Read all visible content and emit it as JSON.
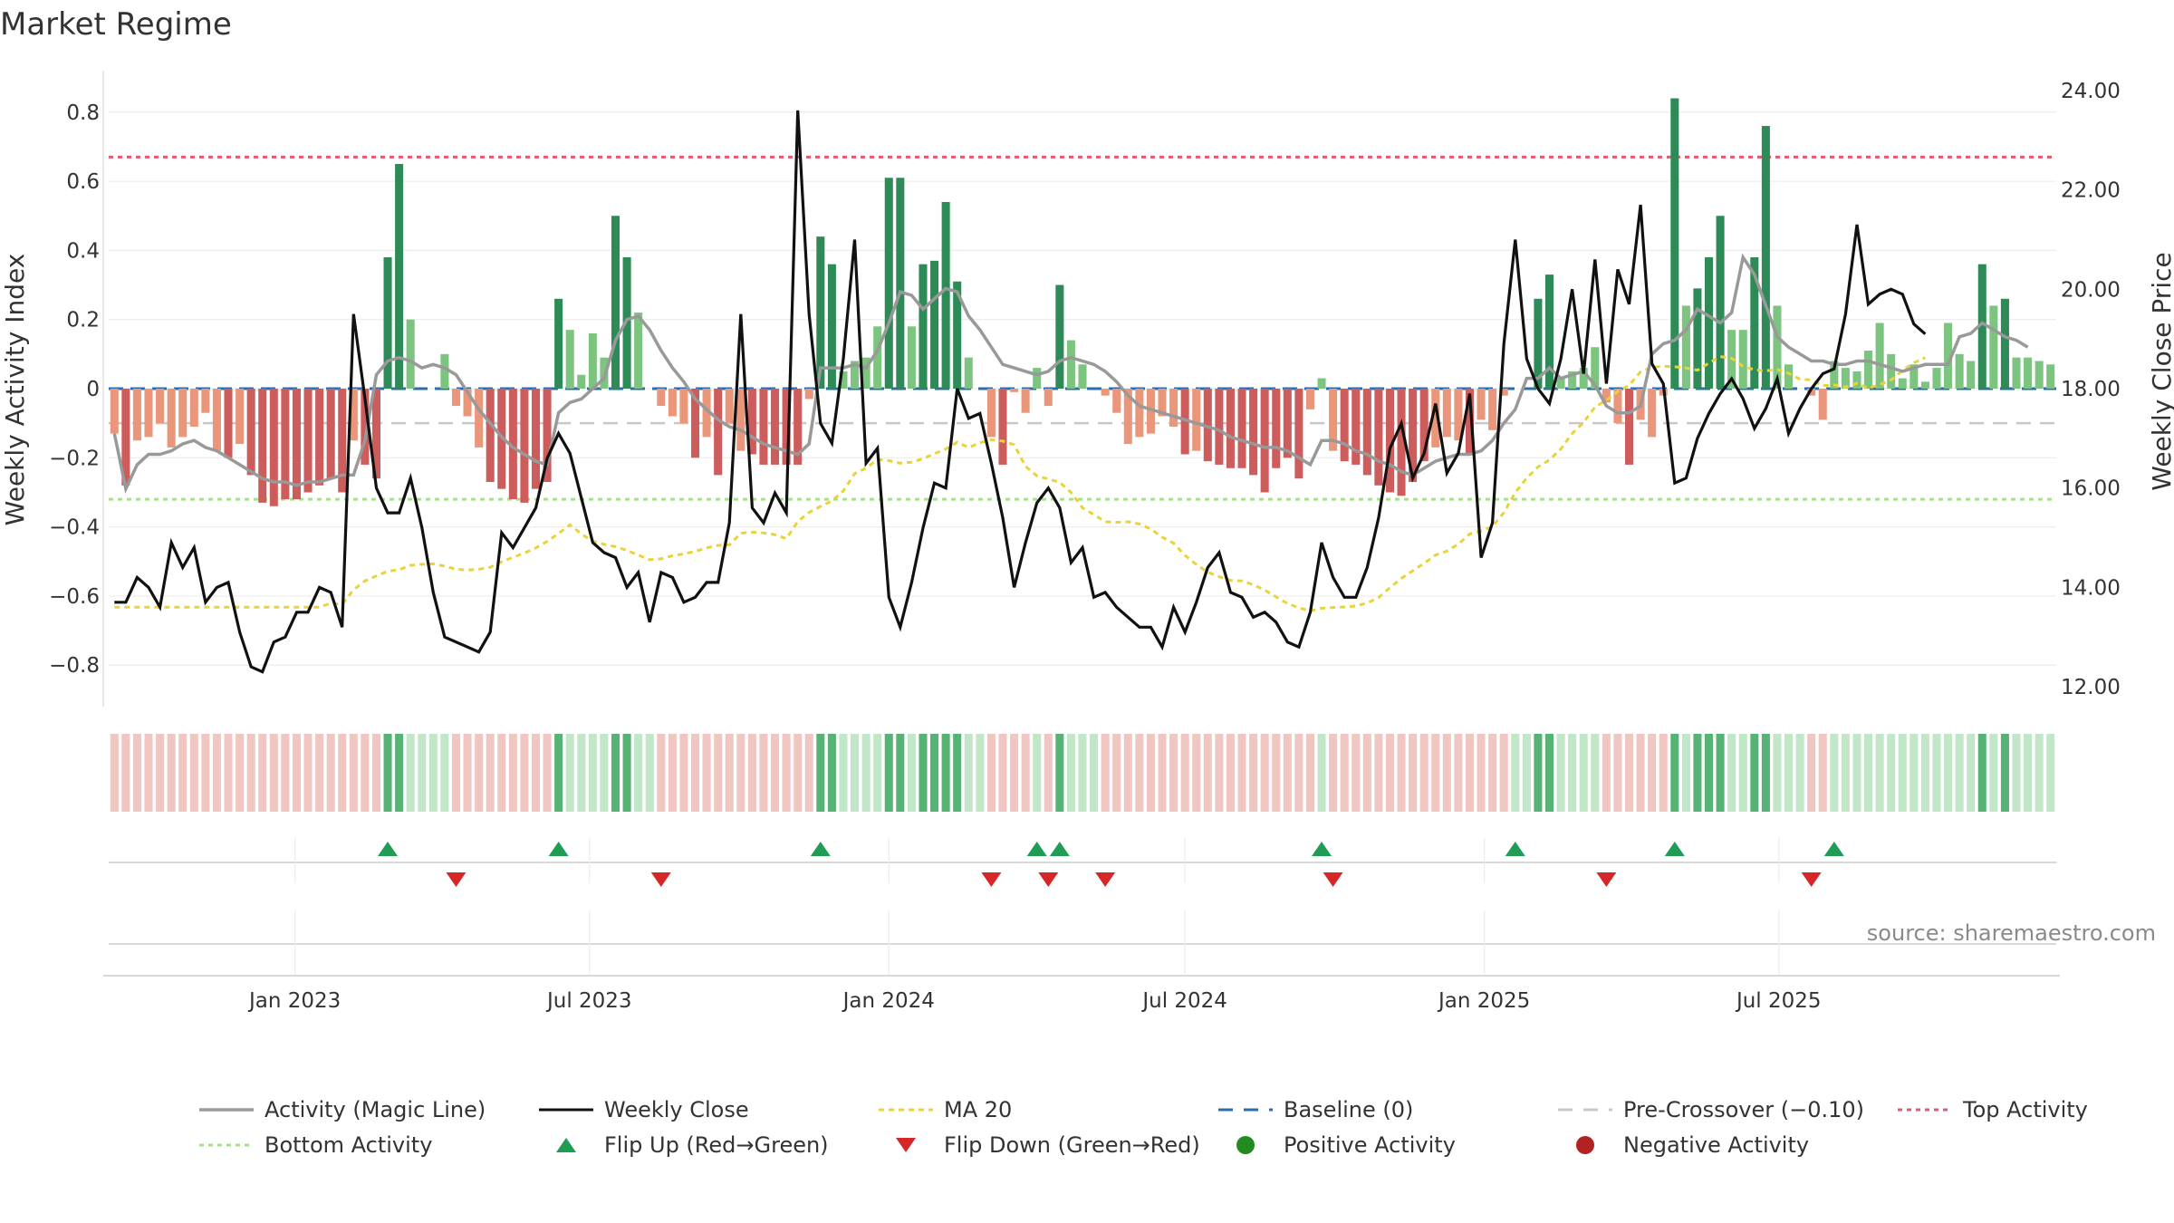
{
  "chart_data": {
    "type": "bar",
    "title": "Market Regime",
    "source": "source: sharemaestro.com",
    "start_date": "2022-09-12",
    "week_step_days": 7,
    "y_left": {
      "label": "Weekly Activity Index",
      "range": [
        -0.92,
        0.92
      ],
      "ticks": [
        -0.8,
        -0.6,
        -0.4,
        -0.2,
        0,
        0.2,
        0.4,
        0.6,
        0.8
      ],
      "tick_labels": [
        "−0.8",
        "−0.6",
        "−0.4",
        "−0.2",
        "0",
        "0.2",
        "0.4",
        "0.6",
        "0.8"
      ]
    },
    "y_right": {
      "label": "Weekly Close Price",
      "range": [
        11.6,
        24.4
      ],
      "ticks": [
        12,
        14,
        16,
        18,
        20,
        22,
        24
      ],
      "tick_labels": [
        "12.00",
        "14.00",
        "16.00",
        "18.00",
        "20.00",
        "22.00",
        "24.00"
      ]
    },
    "x_ticks": [
      {
        "date": "2023-01-01",
        "label": "Jan 2023"
      },
      {
        "date": "2023-07-01",
        "label": "Jul 2023"
      },
      {
        "date": "2024-01-01",
        "label": "Jan 2024"
      },
      {
        "date": "2024-07-01",
        "label": "Jul 2024"
      },
      {
        "date": "2025-01-01",
        "label": "Jan 2025"
      },
      {
        "date": "2025-07-01",
        "label": "Jul 2025"
      }
    ],
    "reference_lines": {
      "top_activity": 0.67,
      "bottom_activity": -0.32,
      "pre_crossover": -0.1,
      "baseline": 0
    },
    "colors": {
      "strong_pos": "#2e8b57",
      "weak_pos": "#7cc47f",
      "strong_neg": "#cd5c5c",
      "weak_neg": "#e9967a",
      "close": "#111111",
      "magic": "#999999",
      "ma": "#e8d43a",
      "baseline": "#2b6cb0",
      "pre": "#c8c8c8",
      "top": "#e05a73",
      "bottom": "#a8df90",
      "flip_up": "#1f9d55",
      "flip_down": "#d62728"
    },
    "activity": [
      -0.13,
      -0.28,
      -0.15,
      -0.14,
      -0.1,
      -0.17,
      -0.14,
      -0.11,
      -0.07,
      -0.18,
      -0.2,
      -0.16,
      -0.25,
      -0.33,
      -0.34,
      -0.32,
      -0.32,
      -0.3,
      -0.28,
      -0.26,
      -0.3,
      -0.15,
      -0.22,
      -0.26,
      0.38,
      0.65,
      0.2,
      0,
      0,
      0.1,
      -0.05,
      -0.08,
      -0.17,
      -0.27,
      -0.29,
      -0.32,
      -0.33,
      -0.29,
      -0.27,
      0.26,
      0.17,
      0.04,
      0.16,
      0.09,
      0.5,
      0.38,
      0.22,
      0,
      -0.05,
      -0.08,
      -0.1,
      -0.2,
      -0.14,
      -0.25,
      -0.1,
      -0.18,
      -0.19,
      -0.22,
      -0.22,
      -0.22,
      -0.22,
      -0.03,
      0.44,
      0.36,
      0.05,
      0.08,
      0.09,
      0.18,
      0.61,
      0.61,
      0.18,
      0.36,
      0.37,
      0.54,
      0.31,
      0.09,
      0.0,
      -0.14,
      -0.22,
      -0.01,
      -0.07,
      0.06,
      -0.05,
      0.3,
      0.14,
      0.07,
      0.0,
      -0.02,
      -0.07,
      -0.16,
      -0.14,
      -0.13,
      -0.08,
      -0.11,
      -0.19,
      -0.18,
      -0.21,
      -0.22,
      -0.23,
      -0.23,
      -0.25,
      -0.3,
      -0.23,
      -0.2,
      -0.26,
      -0.06,
      0.03,
      -0.18,
      -0.21,
      -0.22,
      -0.25,
      -0.28,
      -0.3,
      -0.31,
      -0.27,
      -0.21,
      -0.17,
      -0.14,
      -0.15,
      -0.19,
      -0.09,
      -0.12,
      -0.02,
      0.0,
      0.0,
      0.26,
      0.33,
      0.03,
      0.05,
      0.06,
      0.12,
      -0.04,
      -0.1,
      -0.22,
      -0.09,
      -0.14,
      -0.02,
      0.84,
      0.24,
      0.29,
      0.38,
      0.5,
      0.17,
      0.17,
      0.38,
      0.76,
      0.24,
      0.07,
      0.0,
      -0.02,
      -0.09,
      0.08,
      0.06,
      0.05,
      0.11,
      0.19,
      0.1,
      0.03,
      0.07,
      0.02,
      0.06,
      0.19,
      0.1,
      0.08,
      0.36,
      0.24,
      0.26,
      0.09,
      0.09,
      0.08,
      0.07
    ],
    "close": [
      13.7,
      13.7,
      14.2,
      14.0,
      13.6,
      14.9,
      14.4,
      14.8,
      13.7,
      14.0,
      14.1,
      13.1,
      12.4,
      12.3,
      12.9,
      13.0,
      13.5,
      13.5,
      14.0,
      13.9,
      13.2,
      19.5,
      17.8,
      16.0,
      15.5,
      15.5,
      16.2,
      15.2,
      13.9,
      13.0,
      12.9,
      12.8,
      12.7,
      13.1,
      15.1,
      14.8,
      15.2,
      15.6,
      16.6,
      17.1,
      16.7,
      15.8,
      14.9,
      14.7,
      14.6,
      14.0,
      14.3,
      13.3,
      14.3,
      14.2,
      13.7,
      13.8,
      14.1,
      14.1,
      15.3,
      19.5,
      15.6,
      15.3,
      15.9,
      15.5,
      23.6,
      19.5,
      17.3,
      16.9,
      18.6,
      21.0,
      16.5,
      16.8,
      13.8,
      13.2,
      14.1,
      15.2,
      16.1,
      16.0,
      18.0,
      17.4,
      17.5,
      16.5,
      15.4,
      14.0,
      14.9,
      15.7,
      16.0,
      15.6,
      14.5,
      14.8,
      13.8,
      13.9,
      13.6,
      13.4,
      13.2,
      13.2,
      12.8,
      13.6,
      13.1,
      13.7,
      14.4,
      14.7,
      13.9,
      13.8,
      13.4,
      13.5,
      13.3,
      12.9,
      12.8,
      13.5,
      14.9,
      14.2,
      13.8,
      13.8,
      14.4,
      15.4,
      16.8,
      17.3,
      16.2,
      16.7,
      17.7,
      16.3,
      16.7,
      17.9,
      14.6,
      15.3,
      18.9,
      21.0,
      18.6,
      18.0,
      17.7,
      18.6,
      20.0,
      18.3,
      20.6,
      18.1,
      20.4,
      19.7,
      21.7,
      18.5,
      18.1,
      16.1,
      16.2,
      17.0,
      17.5,
      17.9,
      18.2,
      17.8,
      17.2,
      17.6,
      18.2,
      17.1,
      17.6,
      18.0,
      18.3,
      18.4,
      19.5,
      21.3,
      19.7,
      19.9,
      20.0,
      19.9,
      19.3,
      19.1
    ],
    "magic": [
      -0.13,
      -0.29,
      -0.22,
      -0.19,
      -0.19,
      -0.18,
      -0.16,
      -0.15,
      -0.17,
      -0.18,
      -0.2,
      -0.22,
      -0.24,
      -0.26,
      -0.27,
      -0.27,
      -0.28,
      -0.27,
      -0.27,
      -0.26,
      -0.25,
      -0.25,
      -0.15,
      0.04,
      0.08,
      0.09,
      0.08,
      0.06,
      0.07,
      0.06,
      0.04,
      -0.01,
      -0.06,
      -0.1,
      -0.14,
      -0.17,
      -0.19,
      -0.21,
      -0.22,
      -0.07,
      -0.04,
      -0.03,
      0.0,
      0.03,
      0.14,
      0.2,
      0.21,
      0.17,
      0.11,
      0.06,
      0.02,
      -0.03,
      -0.06,
      -0.09,
      -0.11,
      -0.12,
      -0.14,
      -0.16,
      -0.17,
      -0.18,
      -0.19,
      -0.16,
      0.06,
      0.06,
      0.06,
      0.07,
      0.06,
      0.11,
      0.19,
      0.28,
      0.27,
      0.23,
      0.26,
      0.29,
      0.28,
      0.21,
      0.17,
      0.12,
      0.07,
      0.06,
      0.05,
      0.04,
      0.05,
      0.08,
      0.09,
      0.08,
      0.07,
      0.05,
      0.02,
      -0.02,
      -0.05,
      -0.06,
      -0.07,
      -0.08,
      -0.09,
      -0.1,
      -0.11,
      -0.12,
      -0.14,
      -0.15,
      -0.16,
      -0.17,
      -0.17,
      -0.18,
      -0.2,
      -0.22,
      -0.15,
      -0.15,
      -0.16,
      -0.18,
      -0.19,
      -0.21,
      -0.22,
      -0.24,
      -0.25,
      -0.23,
      -0.21,
      -0.2,
      -0.19,
      -0.19,
      -0.18,
      -0.15,
      -0.1,
      -0.06,
      0.03,
      0.03,
      0.06,
      0.03,
      0.04,
      0.05,
      0.01,
      -0.05,
      -0.07,
      -0.07,
      -0.05,
      0.1,
      0.13,
      0.14,
      0.17,
      0.23,
      0.21,
      0.19,
      0.22,
      0.38,
      0.33,
      0.24,
      0.15,
      0.12,
      0.1,
      0.08,
      0.08,
      0.07,
      0.07,
      0.08,
      0.08,
      0.07,
      0.06,
      0.05,
      0.06,
      0.07,
      0.07,
      0.07,
      0.15,
      0.16,
      0.19,
      0.17,
      0.15,
      0.14,
      0.12
    ]
  },
  "legend": [
    {
      "key": "magic",
      "label": "Activity (Magic Line)"
    },
    {
      "key": "close",
      "label": "Weekly Close"
    },
    {
      "key": "ma",
      "label": "MA 20"
    },
    {
      "key": "baseline",
      "label": "Baseline (0)"
    },
    {
      "key": "pre",
      "label": "Pre-Crossover (−0.10)"
    },
    {
      "key": "top",
      "label": "Top Activity"
    },
    {
      "key": "bottom",
      "label": "Bottom Activity"
    },
    {
      "key": "flip_up",
      "label": "Flip Up (Red→Green)"
    },
    {
      "key": "flip_down",
      "label": "Flip Down (Green→Red)"
    },
    {
      "key": "pos_dot",
      "label": "Positive Activity"
    },
    {
      "key": "neg_dot",
      "label": "Negative Activity"
    }
  ]
}
